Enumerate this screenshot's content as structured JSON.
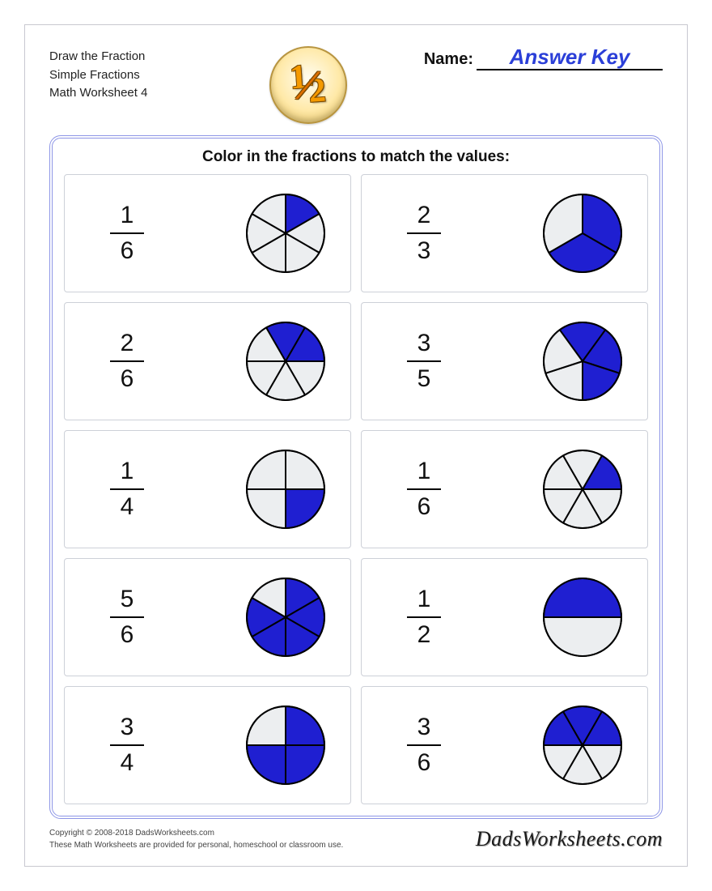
{
  "header": {
    "line1": "Draw the Fraction",
    "line2": "Simple Fractions",
    "line3": "Math Worksheet 4",
    "name_label": "Name:",
    "name_value": "Answer Key",
    "name_value_color": "#2b3fd8",
    "badge": {
      "numerator": "1",
      "denominator": "2"
    }
  },
  "panel": {
    "title": "Color in the fractions to match the values:",
    "border_color": "#8d95e6"
  },
  "problems": [
    {
      "numerator": 1,
      "denominator": 6,
      "filled": 1,
      "start_deg": -90
    },
    {
      "numerator": 2,
      "denominator": 3,
      "filled": 2,
      "start_deg": -90
    },
    {
      "numerator": 2,
      "denominator": 6,
      "filled": 2,
      "start_deg": -120
    },
    {
      "numerator": 3,
      "denominator": 5,
      "filled": 3,
      "start_deg": -126
    },
    {
      "numerator": 1,
      "denominator": 4,
      "filled": 1,
      "start_deg": 0
    },
    {
      "numerator": 1,
      "denominator": 6,
      "filled": 1,
      "start_deg": -60
    },
    {
      "numerator": 5,
      "denominator": 6,
      "filled": 5,
      "start_deg": -90
    },
    {
      "numerator": 1,
      "denominator": 2,
      "filled": 1,
      "start_deg": -180
    },
    {
      "numerator": 3,
      "denominator": 4,
      "filled": 3,
      "start_deg": -90
    },
    {
      "numerator": 3,
      "denominator": 6,
      "filled": 3,
      "start_deg": -180
    }
  ],
  "pie_style": {
    "radius": 48,
    "fill_color": "#1f1fd1",
    "empty_color": "#eceef0",
    "stroke_color": "#000000",
    "stroke_width": 2
  },
  "footer": {
    "copyright": "Copyright © 2008-2018 DadsWorksheets.com",
    "note": "These Math Worksheets are provided for personal, homeschool or classroom use.",
    "brand": "DadsWorksheets.com"
  }
}
